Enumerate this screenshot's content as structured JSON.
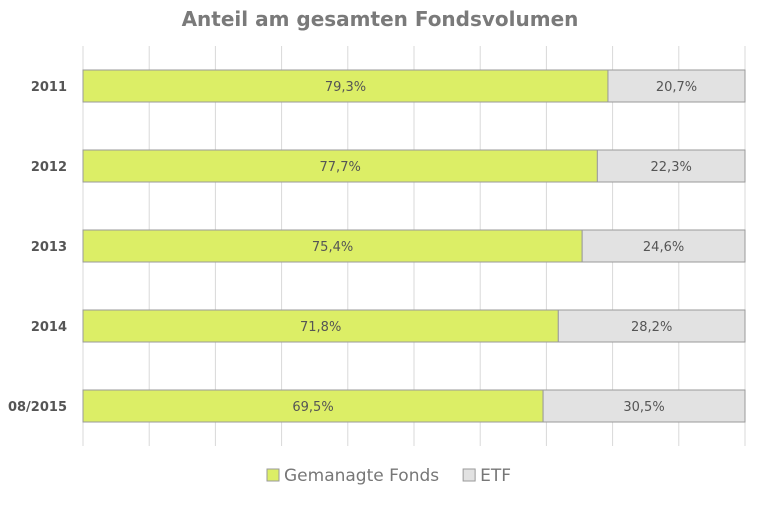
{
  "chart_data": {
    "type": "bar",
    "orientation": "horizontal",
    "stacked": "100%",
    "title": "Anteil am gesamten Fondsvolumen",
    "categories": [
      "2011",
      "2012",
      "2013",
      "2014",
      "08/2015"
    ],
    "series": [
      {
        "name": "Gemanagte Fonds",
        "color": "#dcee66",
        "values": [
          79.3,
          77.7,
          75.4,
          71.8,
          69.5
        ],
        "labels": [
          "79,3%",
          "77,7%",
          "75,4%",
          "71,8%",
          "69,5%"
        ]
      },
      {
        "name": "ETF",
        "color": "#e2e2e2",
        "values": [
          20.7,
          22.3,
          24.6,
          28.2,
          30.5
        ],
        "labels": [
          "20,7%",
          "22,3%",
          "24,6%",
          "28,2%",
          "30,5%"
        ]
      }
    ],
    "xlim": [
      0,
      100
    ],
    "grid": true,
    "axis_labels_visible": false,
    "legend_position": "bottom"
  }
}
